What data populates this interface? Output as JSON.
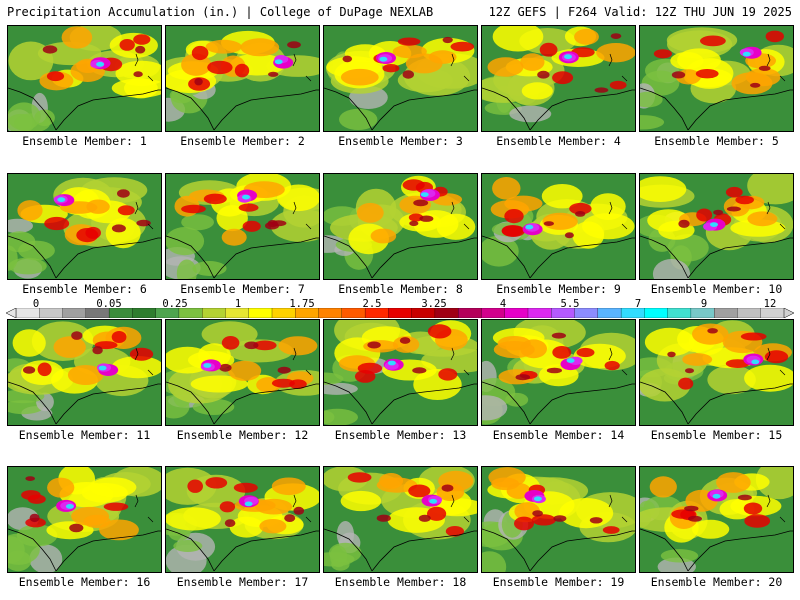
{
  "header": {
    "title": "Precipitation Accumulation (in.) | College of DuPage NEXLAB",
    "run_info": "12Z GEFS | F264 Valid: 12Z THU JUN 19 2025"
  },
  "members": [
    {
      "label": "Ensemble Member: 1"
    },
    {
      "label": "Ensemble Member: 2"
    },
    {
      "label": "Ensemble Member: 3"
    },
    {
      "label": "Ensemble Member: 4"
    },
    {
      "label": "Ensemble Member: 5"
    },
    {
      "label": "Ensemble Member: 6"
    },
    {
      "label": "Ensemble Member: 7"
    },
    {
      "label": "Ensemble Member: 8"
    },
    {
      "label": "Ensemble Member: 9"
    },
    {
      "label": "Ensemble Member: 10"
    },
    {
      "label": "Ensemble Member: 11"
    },
    {
      "label": "Ensemble Member: 12"
    },
    {
      "label": "Ensemble Member: 13"
    },
    {
      "label": "Ensemble Member: 14"
    },
    {
      "label": "Ensemble Member: 15"
    },
    {
      "label": "Ensemble Member: 16"
    },
    {
      "label": "Ensemble Member: 17"
    },
    {
      "label": "Ensemble Member: 18"
    },
    {
      "label": "Ensemble Member: 19"
    },
    {
      "label": "Ensemble Member: 20"
    }
  ],
  "colorbar": {
    "labels": [
      "0",
      "0.05",
      "0.25",
      "1",
      "1.75",
      "2.5",
      "3.25",
      "4",
      "5.5",
      "7",
      "9",
      "12"
    ],
    "colors": [
      "#e6e6e6",
      "#c8c8c8",
      "#a0a0a0",
      "#787878",
      "#3c8c3c",
      "#2e7d2e",
      "#4ea44e",
      "#7cc040",
      "#b4d232",
      "#e6e632",
      "#ffff00",
      "#ffd200",
      "#ffa500",
      "#ff8200",
      "#ff5a00",
      "#ff2800",
      "#e60000",
      "#c80000",
      "#a00014",
      "#b4005a",
      "#d2008c",
      "#e600c8",
      "#dc28f0",
      "#b45aff",
      "#8c8cff",
      "#5ab4ff",
      "#32dcff",
      "#00ffff",
      "#40e0d0",
      "#78c8c8",
      "#a0a0a0",
      "#c0c0c0",
      "#d2d2d2"
    ]
  }
}
